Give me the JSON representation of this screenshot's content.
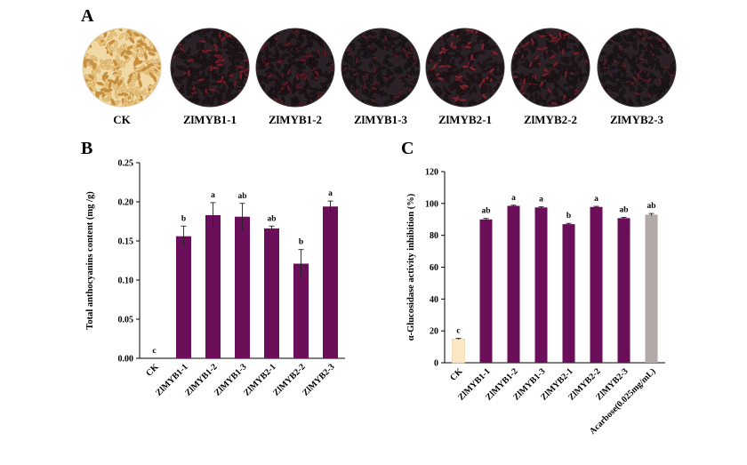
{
  "panel_a": {
    "letter": "A",
    "samples": [
      {
        "label": "CK",
        "seed_color": "#e9c47d",
        "accent": "#c98f3c",
        "dark": false
      },
      {
        "label": "ZlMYB1-1",
        "seed_color": "#1e1518",
        "accent": "#6e1d28",
        "dark": true
      },
      {
        "label": "ZlMYB1-2",
        "seed_color": "#1c1418",
        "accent": "#5a1a24",
        "dark": true
      },
      {
        "label": "ZlMYB1-3",
        "seed_color": "#1a1619",
        "accent": "#4a1c24",
        "dark": true
      },
      {
        "label": "ZlMYB2-1",
        "seed_color": "#221519",
        "accent": "#7a2430",
        "dark": true
      },
      {
        "label": "ZlMYB2-2",
        "seed_color": "#1d1517",
        "accent": "#6a2028",
        "dark": true
      },
      {
        "label": "ZlMYB2-3",
        "seed_color": "#1b1619",
        "accent": "#4e2026",
        "dark": true
      }
    ]
  },
  "chart_data": [
    {
      "panel": "B",
      "type": "bar",
      "title": "",
      "xlabel": "",
      "ylabel": "Total anthocyanins content (mg /g)",
      "ylim": [
        0,
        0.25
      ],
      "y_ticks": [
        "0.00",
        "0.05",
        "0.10",
        "0.15",
        "0.20",
        "0.25"
      ],
      "grid": false,
      "categories": [
        "CK",
        "ZlMYB1-1",
        "ZlMYB1-2",
        "ZlMYB1-3",
        "ZlMYB2-1",
        "ZlMYB2-2",
        "ZlMYB2-3"
      ],
      "values": [
        0,
        0.156,
        0.183,
        0.181,
        0.166,
        0.121,
        0.194
      ],
      "errors": [
        0,
        0.013,
        0.016,
        0.017,
        0.003,
        0.018,
        0.007
      ],
      "significance": [
        "c",
        "b",
        "a",
        "ab",
        "ab",
        "b",
        "a"
      ],
      "colors": [
        "#6b0f5a",
        "#6b0f5a",
        "#6b0f5a",
        "#6b0f5a",
        "#6b0f5a",
        "#6b0f5a",
        "#6b0f5a"
      ]
    },
    {
      "panel": "C",
      "type": "bar",
      "title": "",
      "xlabel": "",
      "ylabel": "α-Glucosidase activity inhibition  (%)",
      "ylim": [
        0,
        120
      ],
      "y_ticks": [
        "0",
        "20",
        "40",
        "60",
        "80",
        "100",
        "120"
      ],
      "grid": false,
      "categories": [
        "CK",
        "ZlMYB1-1",
        "ZlMYB1-2",
        "ZlMYB1-3",
        "ZlMYB2-1",
        "ZlMYB2-2",
        "ZlMYB2-3",
        "Acarbose(0.025mg/mL)"
      ],
      "values": [
        14.9,
        90.0,
        98.5,
        97.5,
        87.0,
        97.8,
        90.8,
        93.0
      ],
      "errors": [
        0.4,
        0.6,
        0.4,
        0.4,
        0.5,
        0.4,
        0.5,
        0.7
      ],
      "significance": [
        "c",
        "ab",
        "a",
        "a",
        "b",
        "a",
        "ab",
        "ab"
      ],
      "colors": [
        "#fbe7c3",
        "#6b0f5a",
        "#6b0f5a",
        "#6b0f5a",
        "#6b0f5a",
        "#6b0f5a",
        "#6b0f5a",
        "#b1aaa8"
      ]
    }
  ]
}
